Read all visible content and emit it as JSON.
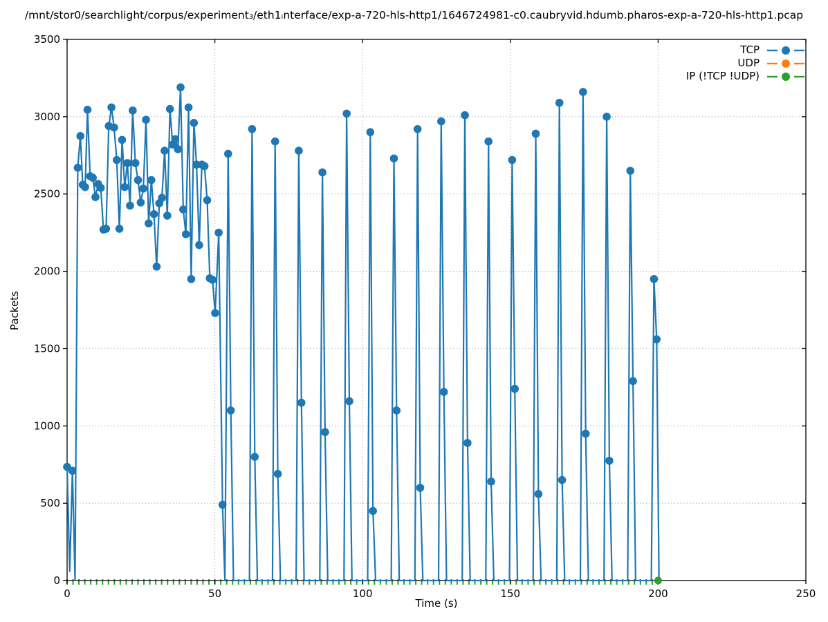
{
  "title": "/mnt/stor0/searchlight/corpus/experiment₃/eth1ᵢnterface/exp-a-720-hls-http1/1646724981-c0.caubryvid.hdumb.pharos-exp-a-720-hls-http1.pcap",
  "y_axis": {
    "label": "Packets",
    "min": 0,
    "max": 3500,
    "ticks": [
      0,
      500,
      1000,
      1500,
      2000,
      2500,
      3000,
      3500
    ]
  },
  "x_axis": {
    "label": "Time (s)",
    "min": 0,
    "max": 250,
    "ticks": [
      0,
      50,
      100,
      150,
      200,
      250
    ]
  },
  "legend": {
    "position": "top-right",
    "items": [
      {
        "label": "TCP",
        "color": "#1f77b4"
      },
      {
        "label": "UDP",
        "color": "#ff7f0e"
      },
      {
        "label": "IP (!TCP  !UDP)",
        "color": "#2ca02c"
      }
    ]
  },
  "colors": {
    "grid": "#b3b3b3",
    "axis": "#000000",
    "background": "#ffffff"
  },
  "chart_data": {
    "type": "line",
    "title": "/mnt/stor0/searchlight/corpus/experiment₃/eth1ᵢnterface/exp-a-720-hls-http1/1646724981-c0.caubryvid.hdumb.pharos-exp-a-720-hls-http1.pcap",
    "xlabel": "Time (s)",
    "ylabel": "Packets",
    "xlim": [
      0,
      250
    ],
    "ylim": [
      0,
      3500
    ],
    "x_ticks": [
      0,
      50,
      100,
      150,
      200,
      250
    ],
    "y_ticks": [
      0,
      500,
      1000,
      1500,
      2000,
      2500,
      3000,
      3500
    ],
    "grid": true,
    "legend_position": "top-right",
    "series": [
      {
        "name": "TCP",
        "color": "#1f77b4",
        "marker": "circle",
        "marker_min_value": 400,
        "points": [
          [
            0,
            735
          ],
          [
            0.9,
            60
          ],
          [
            1.8,
            710
          ],
          [
            2.7,
            0
          ],
          [
            3.6,
            2670
          ],
          [
            4.5,
            2875
          ],
          [
            5.3,
            2560
          ],
          [
            6.1,
            2545
          ],
          [
            6.9,
            3045
          ],
          [
            7.8,
            2615
          ],
          [
            8.7,
            2605
          ],
          [
            9.6,
            2480
          ],
          [
            10.5,
            2565
          ],
          [
            11.4,
            2540
          ],
          [
            12.3,
            2270
          ],
          [
            13.2,
            2275
          ],
          [
            14.1,
            2940
          ],
          [
            15.0,
            3060
          ],
          [
            15.9,
            2930
          ],
          [
            16.8,
            2720
          ],
          [
            17.7,
            2275
          ],
          [
            18.6,
            2850
          ],
          [
            19.5,
            2545
          ],
          [
            20.4,
            2700
          ],
          [
            21.3,
            2425
          ],
          [
            22.2,
            3040
          ],
          [
            23.1,
            2700
          ],
          [
            24.0,
            2590
          ],
          [
            24.9,
            2445
          ],
          [
            25.8,
            2535
          ],
          [
            26.7,
            2980
          ],
          [
            27.6,
            2310
          ],
          [
            28.5,
            2590
          ],
          [
            29.4,
            2370
          ],
          [
            30.3,
            2030
          ],
          [
            31.2,
            2440
          ],
          [
            32.1,
            2475
          ],
          [
            33.0,
            2780
          ],
          [
            33.9,
            2360
          ],
          [
            34.8,
            3050
          ],
          [
            35.7,
            2820
          ],
          [
            36.6,
            2855
          ],
          [
            37.5,
            2790
          ],
          [
            38.4,
            3190
          ],
          [
            39.3,
            2400
          ],
          [
            40.2,
            2240
          ],
          [
            41.1,
            3060
          ],
          [
            42.0,
            1950
          ],
          [
            42.9,
            2960
          ],
          [
            43.8,
            2690
          ],
          [
            44.7,
            2170
          ],
          [
            45.6,
            2690
          ],
          [
            46.5,
            2680
          ],
          [
            47.4,
            2460
          ],
          [
            48.3,
            1955
          ],
          [
            49.2,
            1945
          ],
          [
            50.1,
            1730
          ],
          [
            51.3,
            2250
          ],
          [
            52.6,
            490
          ],
          [
            53.4,
            0
          ],
          [
            54.5,
            2760
          ],
          [
            55.4,
            1100
          ],
          [
            56.3,
            0
          ],
          [
            61.7,
            0
          ],
          [
            62.6,
            2920
          ],
          [
            63.5,
            800
          ],
          [
            64.4,
            0
          ],
          [
            69.5,
            0
          ],
          [
            70.4,
            2840
          ],
          [
            71.3,
            690
          ],
          [
            72.2,
            0
          ],
          [
            77.5,
            0
          ],
          [
            78.4,
            2780
          ],
          [
            79.3,
            1150
          ],
          [
            80.2,
            0
          ],
          [
            85.5,
            0
          ],
          [
            86.4,
            2640
          ],
          [
            87.3,
            960
          ],
          [
            88.2,
            0
          ],
          [
            93.7,
            0
          ],
          [
            94.6,
            3020
          ],
          [
            95.5,
            1160
          ],
          [
            96.4,
            0
          ],
          [
            101.7,
            0
          ],
          [
            102.6,
            2900
          ],
          [
            103.5,
            450
          ],
          [
            104.4,
            0
          ],
          [
            109.7,
            0
          ],
          [
            110.6,
            2730
          ],
          [
            111.5,
            1100
          ],
          [
            112.4,
            0
          ],
          [
            117.7,
            0
          ],
          [
            118.6,
            2920
          ],
          [
            119.5,
            600
          ],
          [
            120.4,
            0
          ],
          [
            125.7,
            0
          ],
          [
            126.6,
            2970
          ],
          [
            127.5,
            1220
          ],
          [
            128.4,
            0
          ],
          [
            133.7,
            0
          ],
          [
            134.6,
            3010
          ],
          [
            135.5,
            890
          ],
          [
            136.4,
            0
          ],
          [
            141.7,
            0
          ],
          [
            142.6,
            2840
          ],
          [
            143.5,
            640
          ],
          [
            144.4,
            0
          ],
          [
            149.7,
            0
          ],
          [
            150.6,
            2720
          ],
          [
            151.5,
            1240
          ],
          [
            152.4,
            0
          ],
          [
            157.7,
            0
          ],
          [
            158.6,
            2890
          ],
          [
            159.5,
            560
          ],
          [
            160.4,
            0
          ],
          [
            165.7,
            0
          ],
          [
            166.6,
            3090
          ],
          [
            167.5,
            650
          ],
          [
            168.4,
            0
          ],
          [
            173.7,
            0
          ],
          [
            174.6,
            3160
          ],
          [
            175.5,
            950
          ],
          [
            176.4,
            0
          ],
          [
            181.7,
            0
          ],
          [
            182.6,
            3000
          ],
          [
            183.5,
            775
          ],
          [
            184.4,
            0
          ],
          [
            189.7,
            0
          ],
          [
            190.6,
            2650
          ],
          [
            191.5,
            1290
          ],
          [
            192.4,
            0
          ],
          [
            197.7,
            0
          ],
          [
            198.6,
            1950
          ],
          [
            199.5,
            1560
          ],
          [
            200.3,
            0
          ]
        ]
      },
      {
        "name": "UDP",
        "color": "#ff7f0e",
        "marker": "circle",
        "points": []
      },
      {
        "name": "IP (!TCP  !UDP)",
        "color": "#2ca02c",
        "marker": "vtick",
        "zero_run": {
          "t_start": 0,
          "t_end": 200,
          "step": 2,
          "value": 0
        },
        "end_point": [
          200,
          0
        ],
        "end_marker": "circle"
      }
    ]
  }
}
